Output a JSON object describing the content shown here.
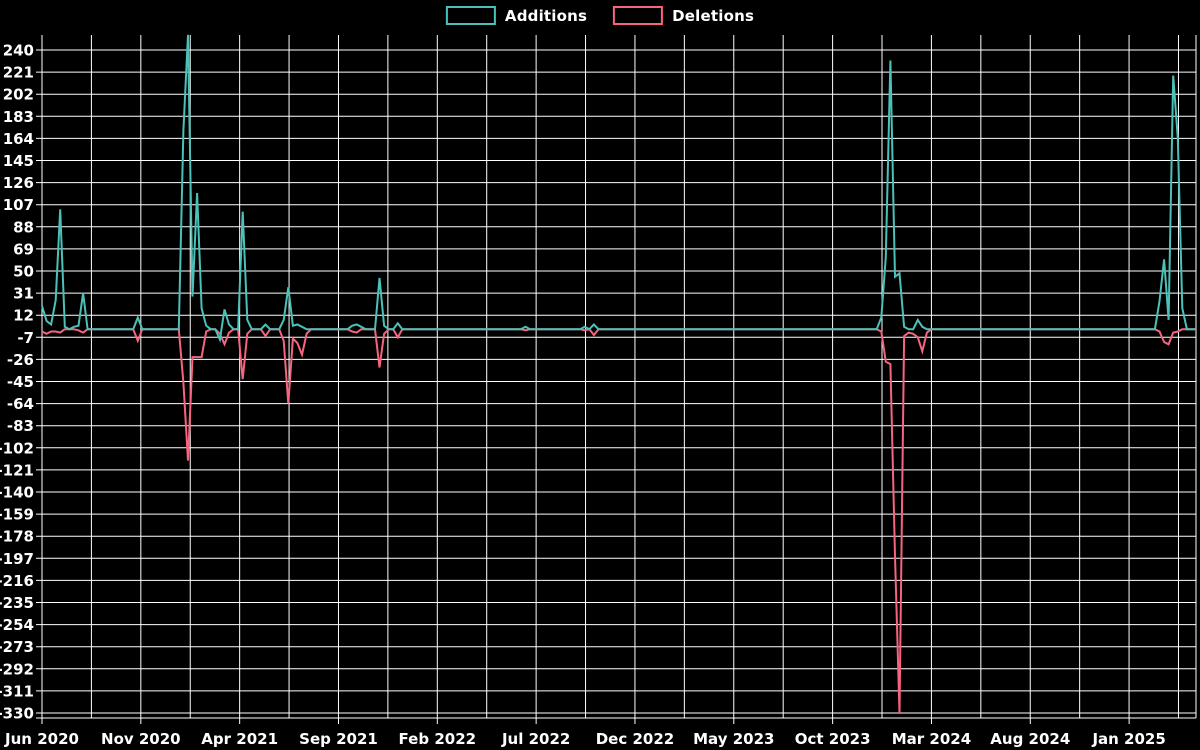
{
  "legend": {
    "items": [
      {
        "label": "Additions",
        "color": "#4ac2b9"
      },
      {
        "label": "Deletions",
        "color": "#f6647f"
      }
    ]
  },
  "chart_data": {
    "type": "line",
    "title": "",
    "background_color": "#000000",
    "grid_color": "#ffffff",
    "text_color": "#ffffff",
    "grid": true,
    "legend_position": "top-center",
    "x_axis": {
      "tick_labels": [
        "Jun 2020",
        "Nov 2020",
        "Apr 2021",
        "Sep 2021",
        "Feb 2022",
        "Jul 2022",
        "Dec 2022",
        "May 2023",
        "Oct 2023",
        "Mar 2024",
        "Aug 2024",
        "Jan 2025"
      ],
      "tick_interval_weeks": 21.667,
      "minor_grid_interval_weeks": 10.833,
      "total_weeks": 253
    },
    "y_axis": {
      "max": 240,
      "min": -330,
      "step": 19,
      "tick_labels": [
        240,
        221,
        202,
        183,
        164,
        145,
        126,
        107,
        88,
        69,
        50,
        31,
        12,
        -7,
        -26,
        -45,
        -64,
        -83,
        -102,
        -121,
        -140,
        -159,
        -178,
        -197,
        -216,
        -235,
        -254,
        -273,
        -292,
        -311,
        -330
      ]
    },
    "baseline_value": 0,
    "series": [
      {
        "name": "Additions",
        "color": "#4ac2b9",
        "points_weekly_sparse": [
          [
            0,
            20
          ],
          [
            1,
            7
          ],
          [
            2,
            4
          ],
          [
            3,
            25
          ],
          [
            4,
            103
          ],
          [
            5,
            2
          ],
          [
            7,
            2
          ],
          [
            8,
            3
          ],
          [
            9,
            31
          ],
          [
            10,
            0
          ],
          [
            20,
            0
          ],
          [
            21,
            10
          ],
          [
            22,
            0
          ],
          [
            30,
            0
          ],
          [
            31,
            171
          ],
          [
            32,
            253
          ],
          [
            33,
            28
          ],
          [
            34,
            117
          ],
          [
            35,
            18
          ],
          [
            36,
            3
          ],
          [
            37,
            0
          ],
          [
            38,
            0
          ],
          [
            39,
            -9
          ],
          [
            40,
            17
          ],
          [
            41,
            4
          ],
          [
            42,
            0
          ],
          [
            43,
            0
          ],
          [
            44,
            101
          ],
          [
            45,
            8
          ],
          [
            46,
            0
          ],
          [
            48,
            0
          ],
          [
            49,
            4
          ],
          [
            50,
            0
          ],
          [
            52,
            0
          ],
          [
            53,
            8
          ],
          [
            54,
            36
          ],
          [
            55,
            3
          ],
          [
            56,
            4
          ],
          [
            57,
            2
          ],
          [
            58,
            0
          ],
          [
            67,
            0
          ],
          [
            68,
            3
          ],
          [
            69,
            4
          ],
          [
            70,
            2
          ],
          [
            71,
            0
          ],
          [
            73,
            0
          ],
          [
            74,
            44
          ],
          [
            75,
            3
          ],
          [
            76,
            0
          ],
          [
            77,
            0
          ],
          [
            78,
            5
          ],
          [
            79,
            0
          ],
          [
            105,
            0
          ],
          [
            106,
            2
          ],
          [
            107,
            0
          ],
          [
            118,
            0
          ],
          [
            119,
            2
          ],
          [
            120,
            0
          ],
          [
            121,
            4
          ],
          [
            122,
            0
          ],
          [
            183,
            0
          ],
          [
            184,
            10
          ],
          [
            185,
            62
          ],
          [
            186,
            231
          ],
          [
            187,
            45
          ],
          [
            188,
            48
          ],
          [
            189,
            2
          ],
          [
            190,
            0
          ],
          [
            191,
            0
          ],
          [
            192,
            8
          ],
          [
            193,
            2
          ],
          [
            194,
            0
          ],
          [
            244,
            0
          ],
          [
            245,
            24
          ],
          [
            246,
            60
          ],
          [
            247,
            8
          ],
          [
            248,
            218
          ],
          [
            249,
            164
          ],
          [
            250,
            18
          ],
          [
            251,
            0
          ]
        ]
      },
      {
        "name": "Deletions",
        "color": "#f6647f",
        "points_weekly_sparse": [
          [
            0,
            -2
          ],
          [
            1,
            -4
          ],
          [
            2,
            -2
          ],
          [
            3,
            -2
          ],
          [
            4,
            -3
          ],
          [
            5,
            0
          ],
          [
            8,
            -1
          ],
          [
            9,
            -3
          ],
          [
            10,
            0
          ],
          [
            20,
            0
          ],
          [
            21,
            -10
          ],
          [
            22,
            0
          ],
          [
            30,
            0
          ],
          [
            31,
            -46
          ],
          [
            32,
            -113
          ],
          [
            33,
            -24
          ],
          [
            34,
            -24
          ],
          [
            35,
            -24
          ],
          [
            36,
            -2
          ],
          [
            37,
            0
          ],
          [
            39,
            -4
          ],
          [
            40,
            -13
          ],
          [
            41,
            -3
          ],
          [
            42,
            0
          ],
          [
            44,
            -43
          ],
          [
            45,
            -4
          ],
          [
            46,
            0
          ],
          [
            48,
            0
          ],
          [
            49,
            -6
          ],
          [
            50,
            0
          ],
          [
            52,
            0
          ],
          [
            53,
            -10
          ],
          [
            54,
            -64
          ],
          [
            55,
            -8
          ],
          [
            56,
            -12
          ],
          [
            57,
            -22
          ],
          [
            58,
            -4
          ],
          [
            59,
            0
          ],
          [
            67,
            0
          ],
          [
            68,
            -2
          ],
          [
            69,
            -3
          ],
          [
            70,
            0
          ],
          [
            73,
            0
          ],
          [
            74,
            -33
          ],
          [
            75,
            -4
          ],
          [
            76,
            0
          ],
          [
            78,
            -7
          ],
          [
            79,
            0
          ],
          [
            106,
            -1
          ],
          [
            107,
            0
          ],
          [
            119,
            -1
          ],
          [
            121,
            -5
          ],
          [
            122,
            0
          ],
          [
            183,
            0
          ],
          [
            184,
            -2
          ],
          [
            185,
            -28
          ],
          [
            186,
            -30
          ],
          [
            187,
            -195
          ],
          [
            188,
            -330
          ],
          [
            189,
            -6
          ],
          [
            190,
            -3
          ],
          [
            191,
            -4
          ],
          [
            192,
            -7
          ],
          [
            193,
            -19
          ],
          [
            194,
            -3
          ],
          [
            195,
            0
          ],
          [
            244,
            0
          ],
          [
            245,
            -2
          ],
          [
            246,
            -11
          ],
          [
            247,
            -13
          ],
          [
            248,
            -3
          ],
          [
            249,
            -2
          ],
          [
            250,
            0
          ]
        ]
      }
    ]
  }
}
